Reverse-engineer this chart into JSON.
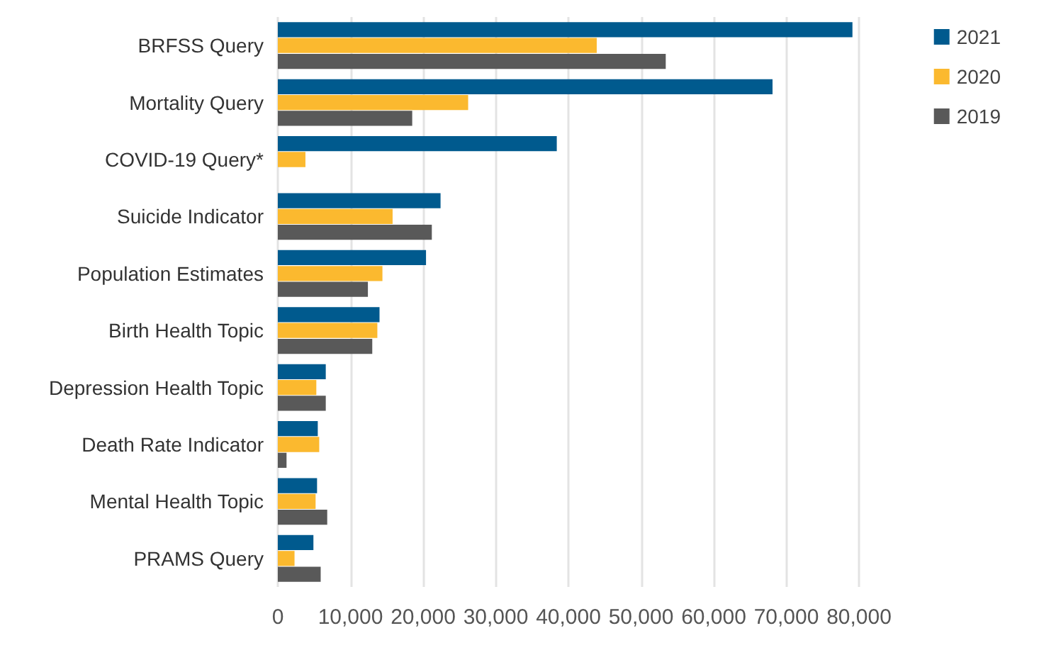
{
  "chart_data": {
    "type": "bar",
    "orientation": "horizontal",
    "categories": [
      "BRFSS Query",
      "Mortality Query",
      "COVID-19 Query*",
      "Suicide Indicator",
      "Population Estimates",
      "Birth Health Topic",
      "Depression Health Topic",
      "Death Rate Indicator",
      "Mental Health Topic",
      "PRAMS Query"
    ],
    "series": [
      {
        "name": "2021",
        "color": "#005a8e",
        "values": [
          79100,
          68100,
          38400,
          22400,
          20400,
          14000,
          6600,
          5500,
          5400,
          4900
        ]
      },
      {
        "name": "2020",
        "color": "#fbb92f",
        "values": [
          43900,
          26200,
          3800,
          15800,
          14400,
          13700,
          5300,
          5700,
          5200,
          2300
        ]
      },
      {
        "name": "2019",
        "color": "#595959",
        "values": [
          53400,
          18500,
          null,
          21200,
          12400,
          13000,
          6600,
          1200,
          6800,
          5900
        ]
      }
    ],
    "xlim": [
      0,
      80000
    ],
    "xticks": [
      {
        "value": 0,
        "label": "0"
      },
      {
        "value": 10000,
        "label": "10,000"
      },
      {
        "value": 20000,
        "label": "20,000"
      },
      {
        "value": 30000,
        "label": "30,000"
      },
      {
        "value": 40000,
        "label": "40,000"
      },
      {
        "value": 50000,
        "label": "50,000"
      },
      {
        "value": 60000,
        "label": "60,000"
      },
      {
        "value": 70000,
        "label": "70,000"
      },
      {
        "value": 80000,
        "label": "80,000"
      }
    ],
    "grid": "x",
    "legend": "top right"
  }
}
